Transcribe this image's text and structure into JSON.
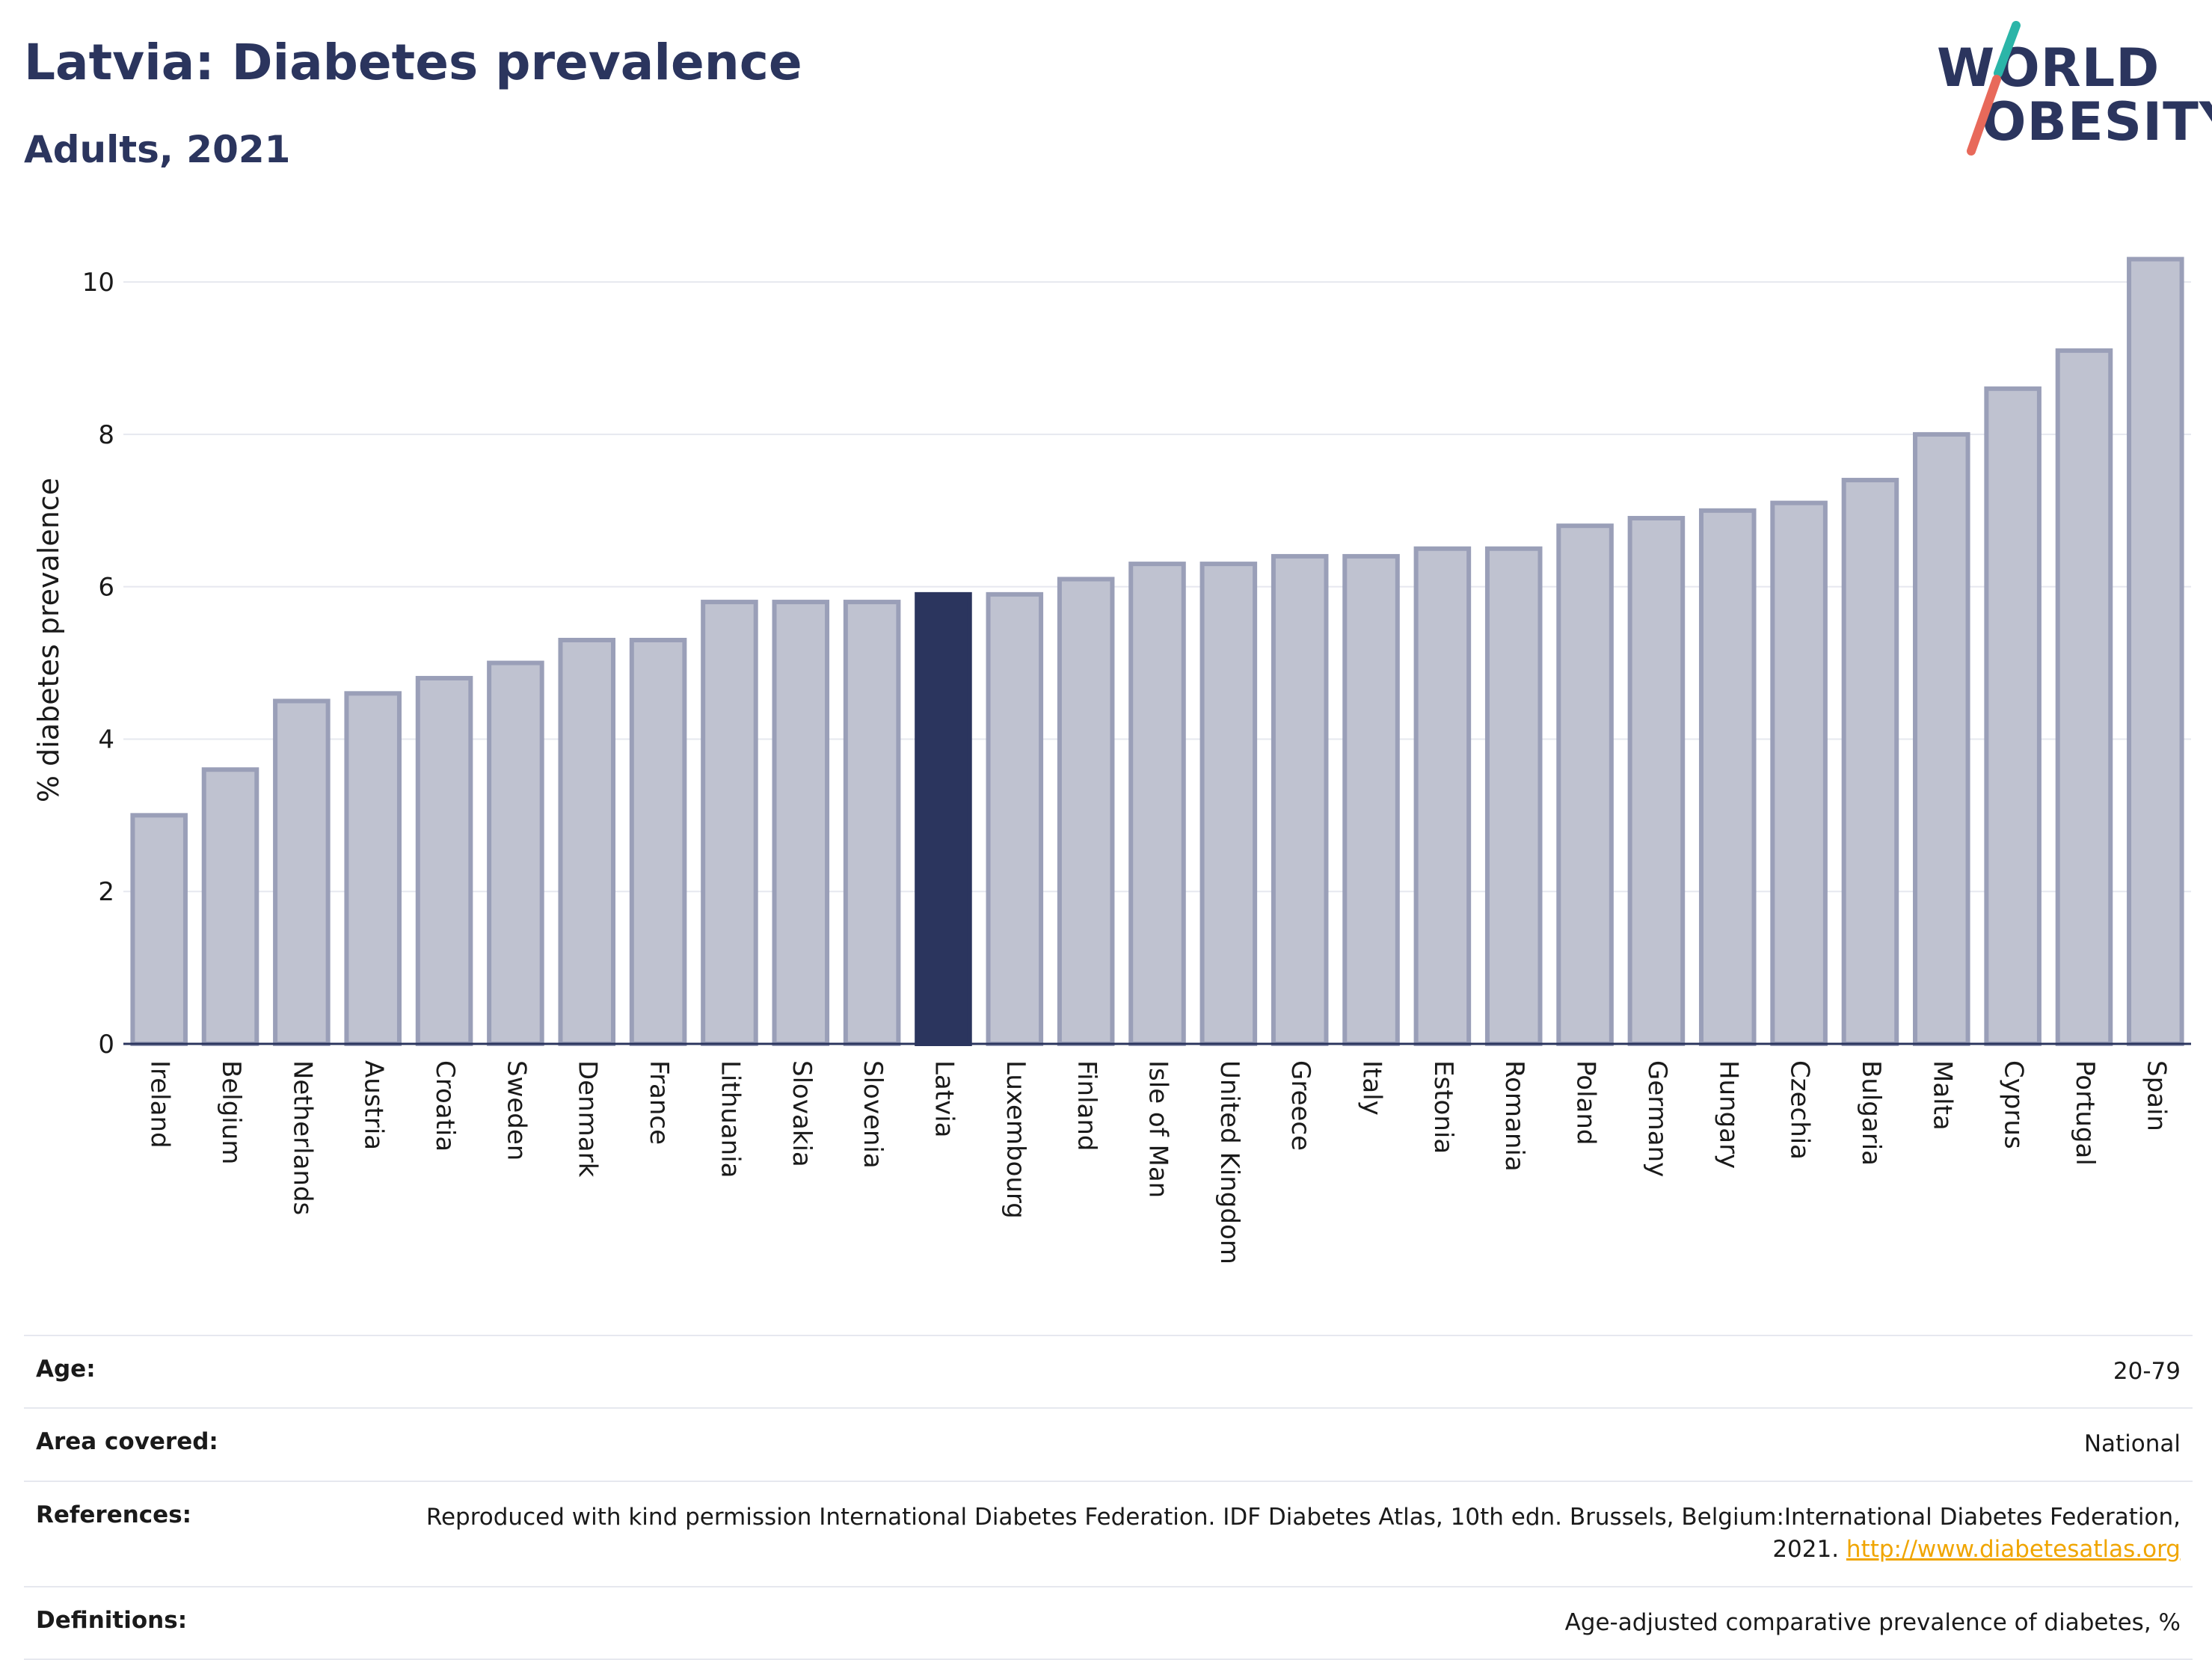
{
  "header": {
    "title": "Latvia: Diabetes prevalence",
    "subtitle": "Adults, 2021"
  },
  "logo": {
    "line1": "WORLD",
    "line2": "OBESITY",
    "colors": {
      "text": "#2b355e",
      "slash_top": "#2bb5a8",
      "slash_bottom": "#e8695a"
    }
  },
  "chart_data": {
    "type": "bar",
    "ylabel": "% diabetes prevalence",
    "ylim": [
      0,
      10.6
    ],
    "yticks": [
      0,
      2,
      4,
      6,
      8,
      10
    ],
    "grid": true,
    "highlight": "Latvia",
    "colors": {
      "bar": "#bfc2d0",
      "bar_border": "#9a9fb8",
      "highlight": "#2b355e",
      "grid": "#e6e8ef",
      "axis": "#2b355e"
    },
    "categories": [
      "Ireland",
      "Belgium",
      "Netherlands",
      "Austria",
      "Croatia",
      "Sweden",
      "Denmark",
      "France",
      "Lithuania",
      "Slovakia",
      "Slovenia",
      "Latvia",
      "Luxembourg",
      "Finland",
      "Isle of Man",
      "United Kingdom",
      "Greece",
      "Italy",
      "Estonia",
      "Romania",
      "Poland",
      "Germany",
      "Hungary",
      "Czechia",
      "Bulgaria",
      "Malta",
      "Cyprus",
      "Portugal",
      "Spain"
    ],
    "values": [
      3.0,
      3.6,
      4.5,
      4.6,
      4.8,
      5.0,
      5.3,
      5.3,
      5.8,
      5.8,
      5.8,
      5.9,
      5.9,
      6.1,
      6.3,
      6.3,
      6.4,
      6.4,
      6.5,
      6.5,
      6.8,
      6.9,
      7.0,
      7.1,
      7.4,
      8.0,
      8.6,
      9.1,
      10.3
    ]
  },
  "metadata": {
    "age_label": "Age:",
    "age_value": "20-79",
    "area_label": "Area covered:",
    "area_value": "National",
    "references_label": "References:",
    "references_text": "Reproduced with kind permission International Diabetes Federation.  IDF Diabetes Atlas, 10th edn. Brussels, Belgium:International Diabetes Federation, 2021. ",
    "references_link": "http://www.diabetesatlas.org",
    "definitions_label": "Definitions:",
    "definitions_value": "Age-adjusted comparative prevalence of diabetes, %"
  }
}
